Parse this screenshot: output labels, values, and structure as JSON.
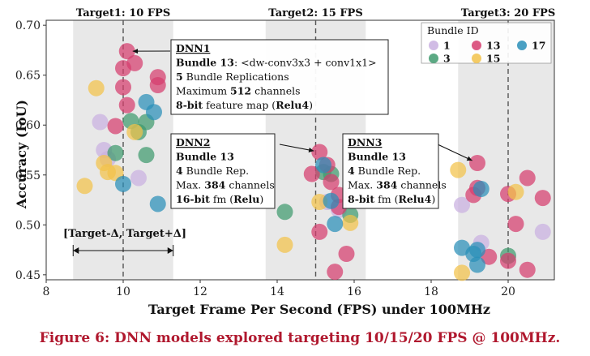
{
  "caption": "Figure 6: DNN models explored targeting 10/15/20 FPS @ 100MHz.",
  "chart_data": {
    "type": "scatter",
    "xlabel": "Target Frame Per Second (FPS) under 100MHz",
    "ylabel": "Accuracy (IoU)",
    "xlim": [
      8,
      21.2
    ],
    "ylim": [
      0.445,
      0.705
    ],
    "xticks": [
      8,
      10,
      12,
      14,
      16,
      18,
      20
    ],
    "yticks": [
      0.45,
      0.5,
      0.55,
      0.6,
      0.65,
      0.7
    ],
    "grid": false,
    "targets": [
      {
        "label": "Target1: 10 FPS",
        "x": 10,
        "band": [
          8.7,
          11.3
        ]
      },
      {
        "label": "Target2: 15 FPS",
        "x": 15,
        "band": [
          13.7,
          16.3
        ]
      },
      {
        "label": "Target3: 20 FPS",
        "x": 20,
        "band": [
          18.7,
          21.2
        ]
      }
    ],
    "range_annotation": "[Target-Δ, Target+Δ]",
    "legend": {
      "title": "Bundle ID",
      "position": "top-right",
      "entries": [
        {
          "name": "1",
          "color": "#c9b0e0"
        },
        {
          "name": "3",
          "color": "#3f9a6e"
        },
        {
          "name": "13",
          "color": "#d63d6e"
        },
        {
          "name": "15",
          "color": "#f2c24a"
        },
        {
          "name": "17",
          "color": "#2a8fb8"
        }
      ]
    },
    "series": [
      {
        "name": "1",
        "color": "#c9b0e0",
        "points": [
          [
            9.4,
            0.603
          ],
          [
            9.5,
            0.575
          ],
          [
            9.6,
            0.566
          ],
          [
            10.4,
            0.547
          ],
          [
            15.3,
            0.523
          ],
          [
            15.6,
            0.515
          ],
          [
            18.8,
            0.52
          ],
          [
            19.3,
            0.482
          ],
          [
            20.9,
            0.493
          ]
        ]
      },
      {
        "name": "3",
        "color": "#3f9a6e",
        "points": [
          [
            9.8,
            0.572
          ],
          [
            10.2,
            0.604
          ],
          [
            10.4,
            0.593
          ],
          [
            10.6,
            0.603
          ],
          [
            10.6,
            0.57
          ],
          [
            14.2,
            0.513
          ],
          [
            15.2,
            0.553
          ],
          [
            15.4,
            0.551
          ],
          [
            15.9,
            0.51
          ],
          [
            20.0,
            0.469
          ]
        ]
      },
      {
        "name": "13",
        "color": "#d63d6e",
        "points": [
          [
            10.1,
            0.674
          ],
          [
            10.0,
            0.657
          ],
          [
            10.0,
            0.638
          ],
          [
            10.3,
            0.662
          ],
          [
            10.1,
            0.62
          ],
          [
            10.9,
            0.648
          ],
          [
            10.9,
            0.64
          ],
          [
            9.8,
            0.599
          ],
          [
            15.1,
            0.573
          ],
          [
            15.3,
            0.56
          ],
          [
            15.4,
            0.543
          ],
          [
            14.9,
            0.551
          ],
          [
            15.6,
            0.53
          ],
          [
            15.6,
            0.518
          ],
          [
            15.1,
            0.493
          ],
          [
            15.8,
            0.471
          ],
          [
            15.5,
            0.453
          ],
          [
            19.2,
            0.562
          ],
          [
            19.2,
            0.537
          ],
          [
            19.1,
            0.53
          ],
          [
            20.0,
            0.531
          ],
          [
            20.5,
            0.547
          ],
          [
            20.2,
            0.501
          ],
          [
            20.9,
            0.527
          ],
          [
            20.5,
            0.455
          ],
          [
            19.5,
            0.468
          ],
          [
            20.0,
            0.464
          ]
        ]
      },
      {
        "name": "15",
        "color": "#f2c24a",
        "points": [
          [
            9.0,
            0.539
          ],
          [
            9.3,
            0.637
          ],
          [
            9.5,
            0.562
          ],
          [
            9.6,
            0.553
          ],
          [
            9.8,
            0.552
          ],
          [
            10.3,
            0.593
          ],
          [
            14.2,
            0.48
          ],
          [
            15.1,
            0.523
          ],
          [
            15.9,
            0.502
          ],
          [
            18.7,
            0.555
          ],
          [
            18.8,
            0.452
          ],
          [
            20.2,
            0.533
          ]
        ]
      },
      {
        "name": "17",
        "color": "#2a8fb8",
        "points": [
          [
            10.0,
            0.541
          ],
          [
            10.6,
            0.623
          ],
          [
            10.8,
            0.613
          ],
          [
            10.9,
            0.521
          ],
          [
            15.2,
            0.56
          ],
          [
            15.4,
            0.524
          ],
          [
            15.5,
            0.501
          ],
          [
            18.8,
            0.477
          ],
          [
            19.1,
            0.471
          ],
          [
            19.2,
            0.475
          ],
          [
            19.2,
            0.46
          ],
          [
            19.3,
            0.536
          ]
        ]
      }
    ],
    "annotations": [
      {
        "lines": [
          [
            {
              "t": "DNN1",
              "b": true,
              "u": true
            }
          ],
          [
            {
              "t": "Bundle 13",
              "b": true
            },
            {
              "t": ": <dw-conv3x3 + conv1x1>"
            }
          ],
          [
            {
              "t": "5",
              "b": true
            },
            {
              "t": " Bundle Replications"
            }
          ],
          [
            {
              "t": "Maximum "
            },
            {
              "t": "512",
              "b": true
            },
            {
              "t": " channels"
            }
          ],
          [
            {
              "t": "8-bit",
              "b": true
            },
            {
              "t": " feature map ("
            },
            {
              "t": "Relu4",
              "b": true
            },
            {
              "t": ")"
            }
          ]
        ]
      },
      {
        "lines": [
          [
            {
              "t": "DNN2",
              "b": true,
              "u": true
            }
          ],
          [
            {
              "t": "Bundle 13",
              "b": true
            }
          ],
          [
            {
              "t": "4",
              "b": true
            },
            {
              "t": " Bundle Rep."
            }
          ],
          [
            {
              "t": "Max. "
            },
            {
              "t": "384",
              "b": true
            },
            {
              "t": " channels"
            }
          ],
          [
            {
              "t": "16-bit",
              "b": true
            },
            {
              "t": " fm ("
            },
            {
              "t": "Relu",
              "b": true
            },
            {
              "t": ")"
            }
          ]
        ]
      },
      {
        "lines": [
          [
            {
              "t": "DNN3",
              "b": true,
              "u": true
            }
          ],
          [
            {
              "t": "Bundle 13",
              "b": true
            }
          ],
          [
            {
              "t": "4",
              "b": true
            },
            {
              "t": " Bundle Rep."
            }
          ],
          [
            {
              "t": "Max. "
            },
            {
              "t": "384",
              "b": true
            },
            {
              "t": " channels"
            }
          ],
          [
            {
              "t": "8-bit",
              "b": true
            },
            {
              "t": " fm ("
            },
            {
              "t": "Relu4",
              "b": true
            },
            {
              "t": ")"
            }
          ]
        ]
      }
    ]
  }
}
